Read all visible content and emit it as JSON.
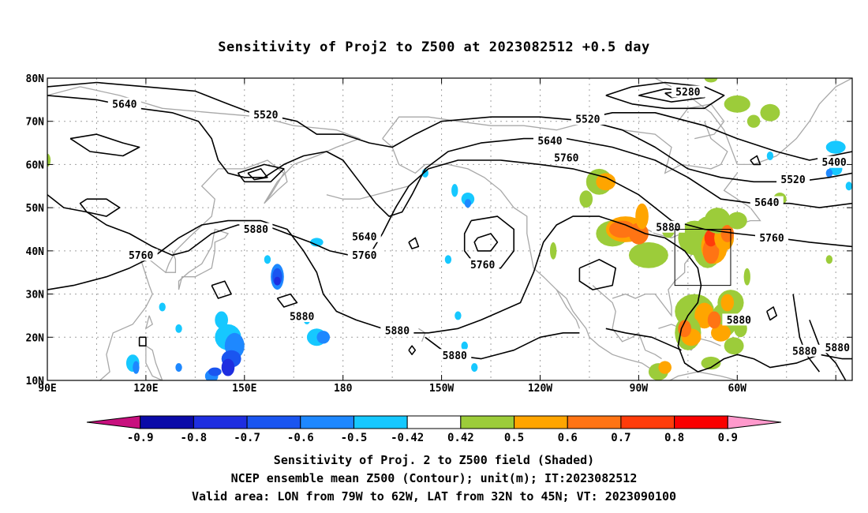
{
  "title": "Sensitivity of Proj2 to Z500 at 2023082512 +0.5 day",
  "lat_axis": [
    "80N",
    "70N",
    "60N",
    "50N",
    "40N",
    "30N",
    "20N",
    "10N"
  ],
  "lon_axis": [
    "90E",
    "120E",
    "150E",
    "180",
    "150W",
    "120W",
    "90W",
    "60W"
  ],
  "contour_labels": [
    {
      "text": "5280",
      "lon": 285,
      "lat": 76.8
    },
    {
      "text": "5640",
      "lon": 113.5,
      "lat": 74
    },
    {
      "text": "5520",
      "lon": 156.5,
      "lat": 71.5
    },
    {
      "text": "5520",
      "lon": 254.5,
      "lat": 70.5
    },
    {
      "text": "5640",
      "lon": 243,
      "lat": 65.5
    },
    {
      "text": "5760",
      "lon": 248,
      "lat": 61.5
    },
    {
      "text": "5400",
      "lon": 329.5,
      "lat": 60.5
    },
    {
      "text": "5520",
      "lon": 317,
      "lat": 56.5
    },
    {
      "text": "5640",
      "lon": 309,
      "lat": 51.2
    },
    {
      "text": "5880",
      "lon": 279,
      "lat": 45.5
    },
    {
      "text": "5880",
      "lon": 153.5,
      "lat": 45
    },
    {
      "text": "5760",
      "lon": 310.5,
      "lat": 43
    },
    {
      "text": "5640",
      "lon": 186.5,
      "lat": 43.3
    },
    {
      "text": "5760",
      "lon": 186.5,
      "lat": 39
    },
    {
      "text": "5760",
      "lon": 118.5,
      "lat": 39
    },
    {
      "text": "5760",
      "lon": 222.5,
      "lat": 36.8
    },
    {
      "text": "5880",
      "lon": 167.5,
      "lat": 24.8
    },
    {
      "text": "5880",
      "lon": 300.5,
      "lat": 24
    },
    {
      "text": "5880",
      "lon": 196.5,
      "lat": 21.5
    },
    {
      "text": "5880",
      "lon": 214,
      "lat": 15.8
    },
    {
      "text": "5880",
      "lon": 320.5,
      "lat": 16.8
    },
    {
      "text": "5880",
      "lon": 330.5,
      "lat": 17.6
    }
  ],
  "valid_area": {
    "lon": [
      281,
      298
    ],
    "lat": [
      32,
      45
    ]
  },
  "colorbar": {
    "labels": [
      "-0.9",
      "-0.8",
      "-0.7",
      "-0.6",
      "-0.5",
      "-0.42",
      "0.42",
      "0.5",
      "0.6",
      "0.7",
      "0.8",
      "0.9"
    ],
    "colors": [
      "#c8107e",
      "#0a0aa8",
      "#1e2ee0",
      "#1a55f0",
      "#1e88ff",
      "#16c8ff",
      "#ffffff",
      "#9ccc3a",
      "#ffa500",
      "#ff7414",
      "#ff3c0a",
      "#fa0000",
      "#ff99cc"
    ]
  },
  "footer": {
    "line1": "Sensitivity of Proj. 2 to Z500 field (Shaded)",
    "line2": "NCEP ensemble mean Z500 (Contour); unit(m); IT:2023082512",
    "line3": "Valid area: LON from 79W to 62W, LAT from 32N to 45N; VT: 2023090100"
  },
  "colors": {
    "contour": "#000000",
    "coast": "#a8a8a8",
    "grid": "#a0a0a0"
  }
}
